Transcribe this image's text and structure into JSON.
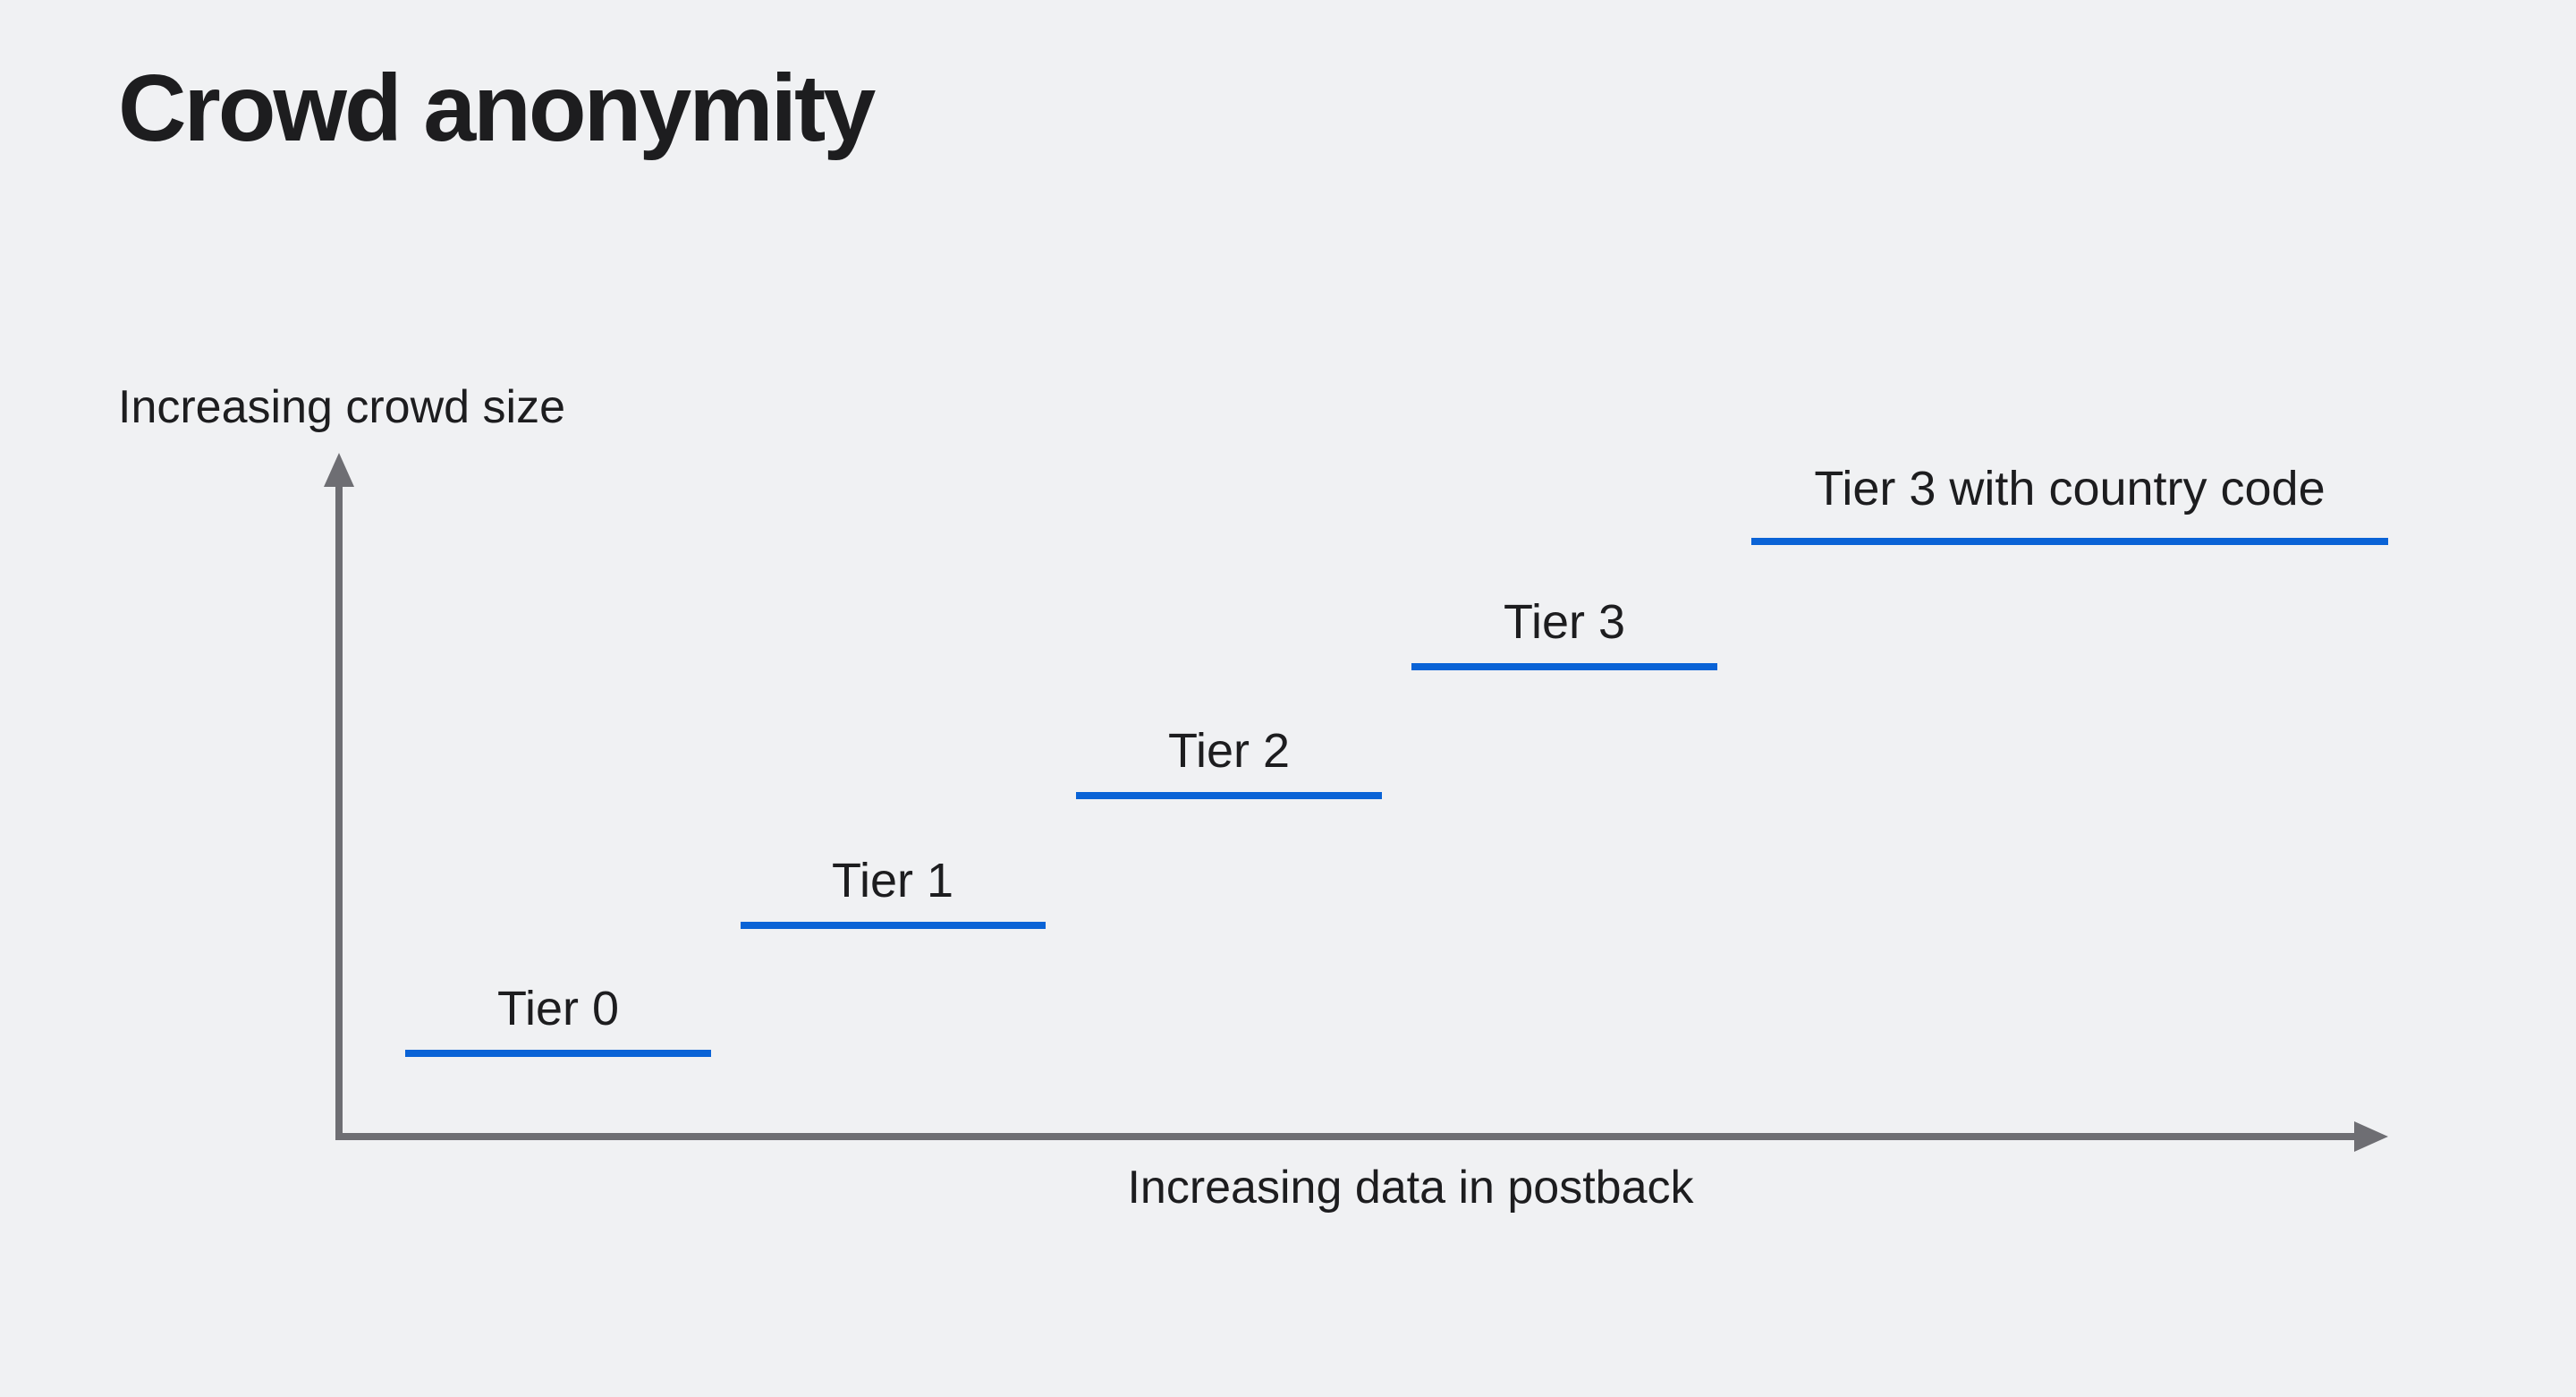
{
  "slide": {
    "title": "Crowd anonymity"
  },
  "diagram": {
    "y_axis_label": "Increasing crowd size",
    "x_axis_label": "Increasing data in postback",
    "tiers": [
      {
        "label": "Tier 0"
      },
      {
        "label": "Tier 1"
      },
      {
        "label": "Tier 2"
      },
      {
        "label": "Tier 3"
      },
      {
        "label": "Tier 3 with country code"
      }
    ],
    "colors": {
      "axis": "#6e6e73",
      "tier_bar": "#0a63d6"
    }
  }
}
